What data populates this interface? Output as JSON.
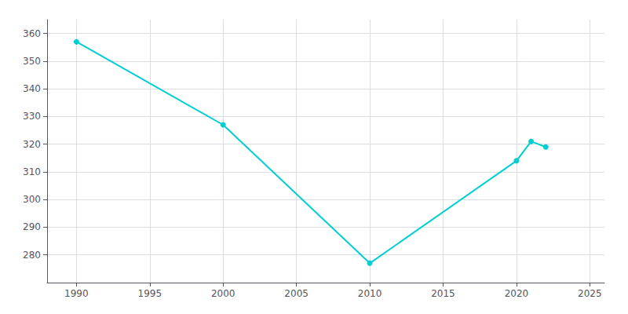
{
  "chart_data": {
    "type": "line",
    "x": [
      1990,
      2000,
      2010,
      2020,
      2021,
      2022
    ],
    "values": [
      357,
      327,
      277,
      314,
      321,
      319
    ],
    "color": "#00CED1",
    "marker": "circle",
    "xlim": [
      1988,
      2026
    ],
    "ylim": [
      270,
      365
    ],
    "xticks": [
      1990,
      1995,
      2000,
      2005,
      2010,
      2015,
      2020,
      2025
    ],
    "yticks": [
      280,
      290,
      300,
      310,
      320,
      330,
      340,
      350,
      360
    ],
    "grid": true
  }
}
